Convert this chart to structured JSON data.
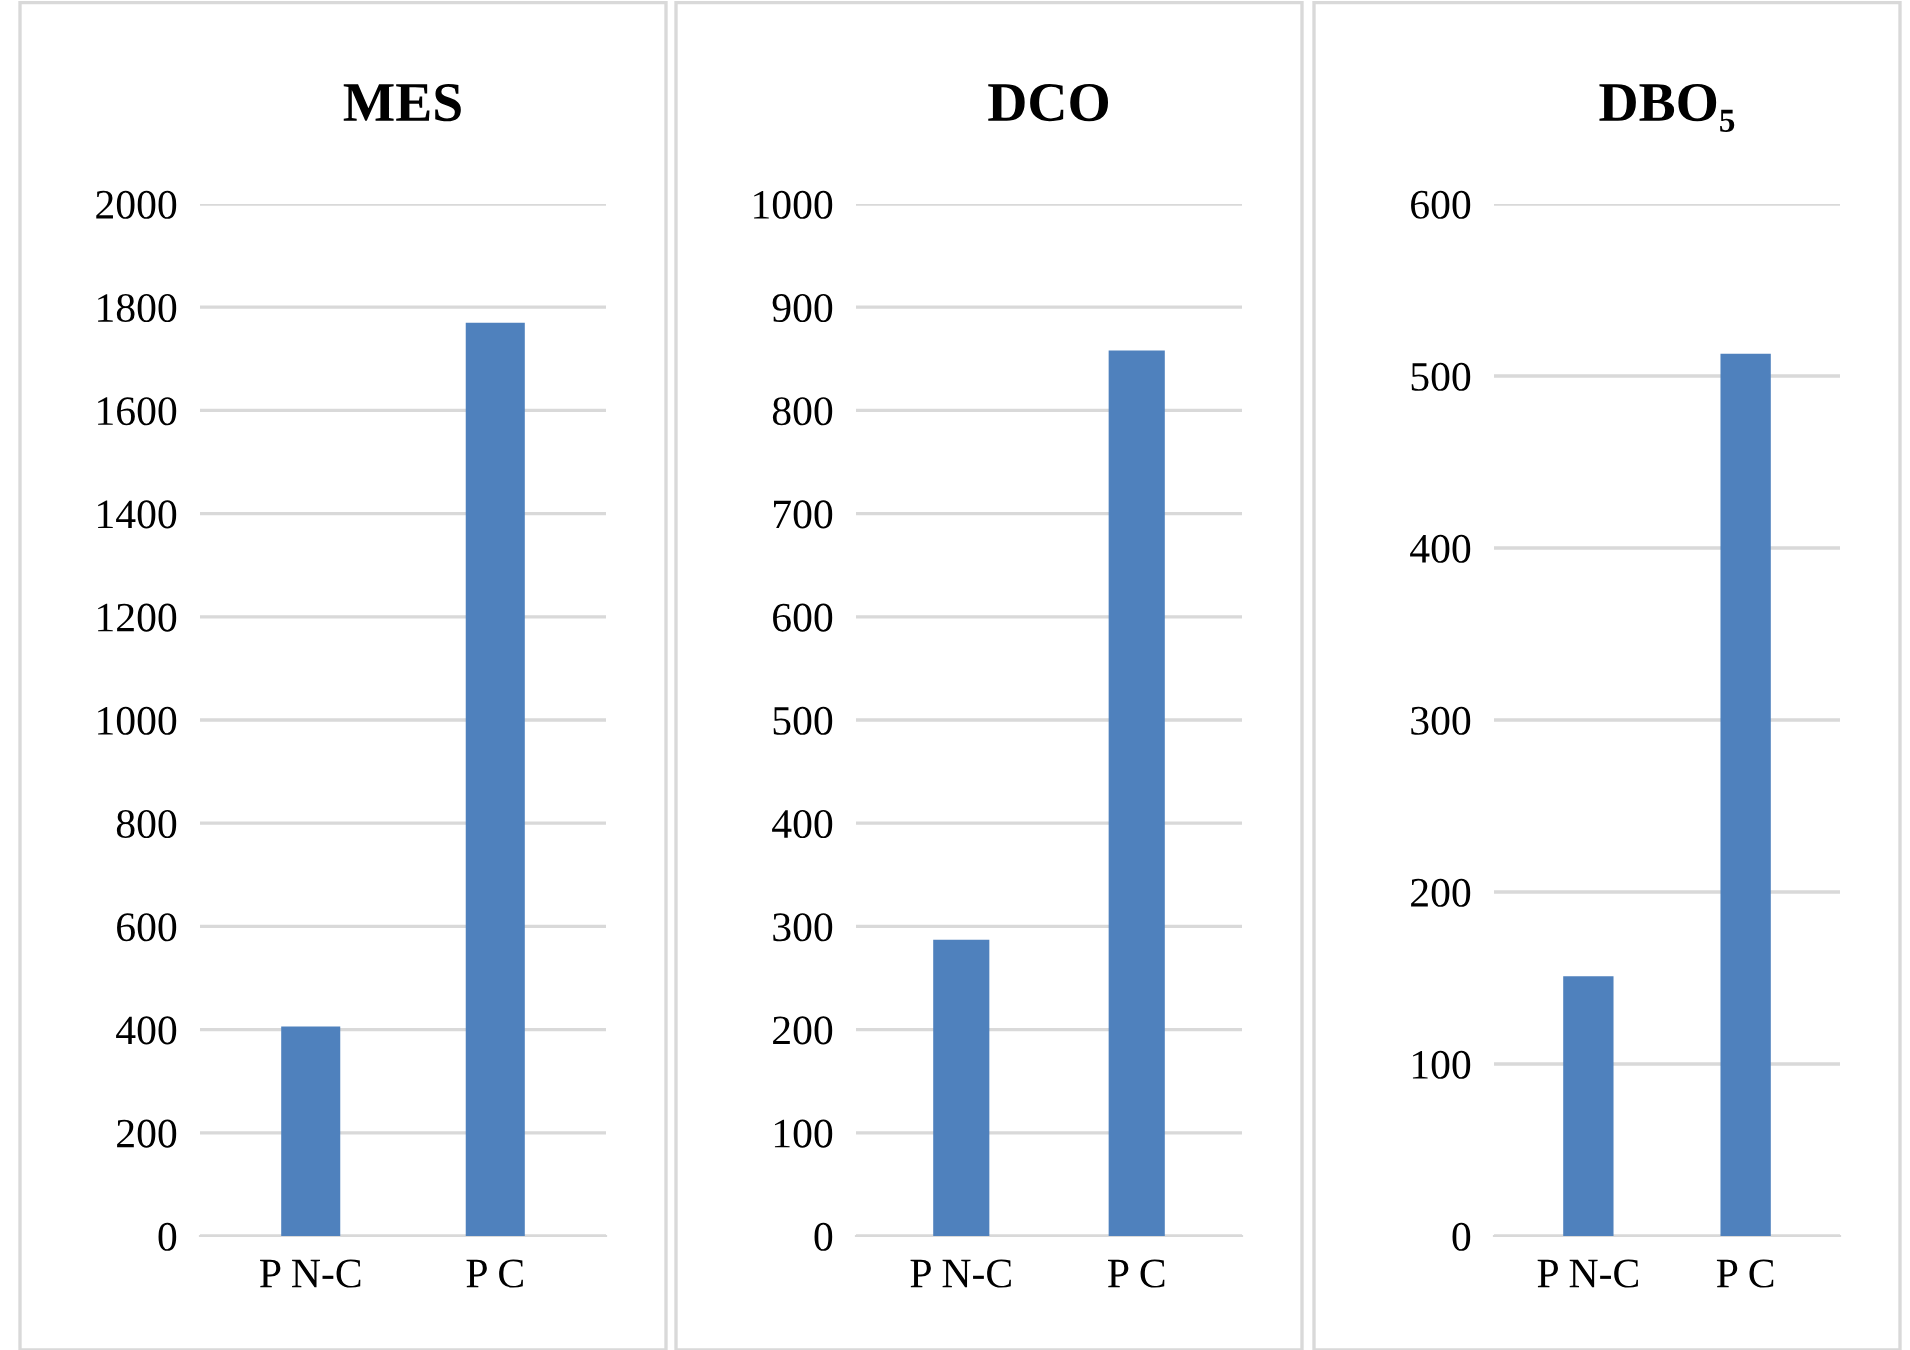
{
  "chart_data": [
    {
      "type": "bar",
      "title": "MES",
      "categories": [
        "P N-C",
        "P C"
      ],
      "values": [
        406,
        1770
      ],
      "color": "#4f81bd",
      "ylim": [
        0,
        2000
      ],
      "yticks": [
        0,
        200,
        400,
        600,
        800,
        1000,
        1200,
        1400,
        1600,
        1800,
        2000
      ],
      "grid": "y"
    },
    {
      "type": "bar",
      "title": "DCO",
      "categories": [
        "P N-C",
        "P C"
      ],
      "values": [
        287,
        858
      ],
      "color": "#4f81bd",
      "ylim": [
        0,
        1000
      ],
      "yticks": [
        0,
        100,
        200,
        300,
        400,
        500,
        600,
        700,
        800,
        900,
        1000
      ],
      "grid": "y"
    },
    {
      "type": "bar",
      "title": "DBO₅",
      "categories": [
        "P N-C",
        "P C"
      ],
      "values": [
        151,
        513
      ],
      "color": "#4f81bd",
      "ylim": [
        0,
        600
      ],
      "yticks": [
        0,
        100,
        200,
        300,
        400,
        500,
        600
      ],
      "grid": "y"
    }
  ]
}
